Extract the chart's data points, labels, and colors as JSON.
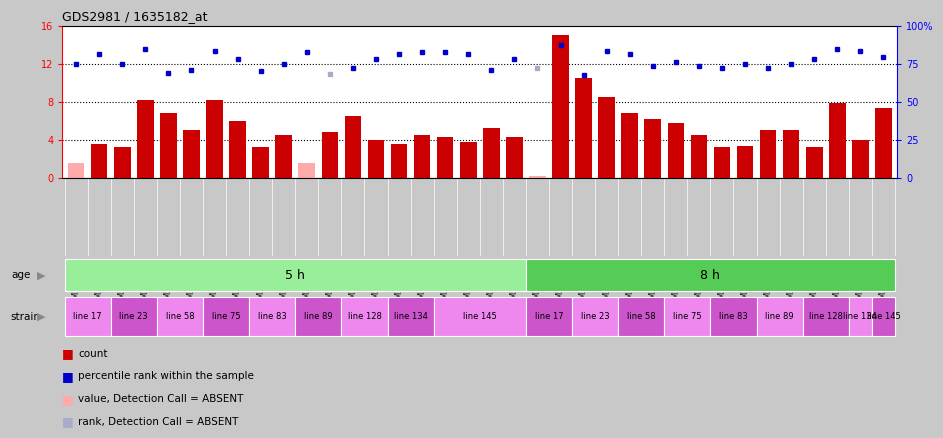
{
  "title": "GDS2981 / 1635182_at",
  "samples": [
    "GSM225283",
    "GSM225286",
    "GSM225288",
    "GSM225289",
    "GSM225291",
    "GSM225293",
    "GSM225296",
    "GSM225298",
    "GSM225299",
    "GSM225302",
    "GSM225304",
    "GSM225306",
    "GSM225307",
    "GSM225309",
    "GSM225317",
    "GSM225318",
    "GSM225319",
    "GSM225320",
    "GSM225322",
    "GSM225323",
    "GSM225324",
    "GSM225325",
    "GSM225326",
    "GSM225327",
    "GSM225328",
    "GSM225329",
    "GSM225330",
    "GSM225331",
    "GSM225332",
    "GSM225333",
    "GSM225334",
    "GSM225335",
    "GSM225336",
    "GSM225337",
    "GSM225338",
    "GSM225339"
  ],
  "bar_values": [
    1.5,
    3.5,
    3.2,
    8.2,
    6.8,
    5.0,
    8.2,
    6.0,
    3.2,
    4.5,
    1.5,
    4.8,
    6.5,
    4.0,
    3.5,
    4.5,
    4.3,
    3.8,
    5.2,
    4.3,
    0.2,
    15.0,
    10.5,
    8.5,
    6.8,
    6.2,
    5.8,
    4.5,
    3.2,
    3.3,
    5.0,
    5.0,
    3.2,
    7.9,
    4.0,
    7.3
  ],
  "bar_absent": [
    true,
    false,
    false,
    false,
    false,
    false,
    false,
    false,
    false,
    false,
    true,
    false,
    false,
    false,
    false,
    false,
    false,
    false,
    false,
    false,
    true,
    false,
    false,
    false,
    false,
    false,
    false,
    false,
    false,
    false,
    false,
    false,
    false,
    false,
    false,
    false
  ],
  "rank_values": [
    12.0,
    13.0,
    12.0,
    13.5,
    11.0,
    11.3,
    13.3,
    12.5,
    11.2,
    12.0,
    13.2,
    10.9,
    11.5,
    12.5,
    13.0,
    13.2,
    13.2,
    13.0,
    11.3,
    12.5,
    11.5,
    14.0,
    10.8,
    13.3,
    13.0,
    11.8,
    12.2,
    11.8,
    11.5,
    12.0,
    11.5,
    12.0,
    12.5,
    13.5,
    13.3,
    12.7
  ],
  "rank_absent": [
    false,
    false,
    false,
    false,
    false,
    false,
    false,
    false,
    false,
    false,
    false,
    true,
    false,
    false,
    false,
    false,
    false,
    false,
    false,
    false,
    true,
    false,
    false,
    false,
    false,
    false,
    false,
    false,
    false,
    false,
    false,
    false,
    false,
    false,
    false,
    false
  ],
  "ylim_left": [
    0,
    16
  ],
  "ylim_right": [
    0,
    100
  ],
  "yticks_left": [
    0,
    4,
    8,
    12,
    16
  ],
  "yticks_right": [
    0,
    25,
    50,
    75,
    100
  ],
  "hlines": [
    4,
    8,
    12
  ],
  "age_groups": [
    {
      "label": "5 h",
      "start": 0,
      "end": 20,
      "color": "#99ee99"
    },
    {
      "label": "8 h",
      "start": 20,
      "end": 36,
      "color": "#55cc55"
    }
  ],
  "strain_groups": [
    {
      "label": "line 17",
      "start": 0,
      "end": 2,
      "color": "#ee88ee"
    },
    {
      "label": "line 23",
      "start": 2,
      "end": 4,
      "color": "#cc55cc"
    },
    {
      "label": "line 58",
      "start": 4,
      "end": 6,
      "color": "#ee88ee"
    },
    {
      "label": "line 75",
      "start": 6,
      "end": 8,
      "color": "#cc55cc"
    },
    {
      "label": "line 83",
      "start": 8,
      "end": 10,
      "color": "#ee88ee"
    },
    {
      "label": "line 89",
      "start": 10,
      "end": 12,
      "color": "#cc55cc"
    },
    {
      "label": "line 128",
      "start": 12,
      "end": 14,
      "color": "#ee88ee"
    },
    {
      "label": "line 134",
      "start": 14,
      "end": 16,
      "color": "#cc55cc"
    },
    {
      "label": "line 145",
      "start": 16,
      "end": 20,
      "color": "#ee88ee"
    },
    {
      "label": "line 17",
      "start": 20,
      "end": 22,
      "color": "#cc55cc"
    },
    {
      "label": "line 23",
      "start": 22,
      "end": 24,
      "color": "#ee88ee"
    },
    {
      "label": "line 58",
      "start": 24,
      "end": 26,
      "color": "#cc55cc"
    },
    {
      "label": "line 75",
      "start": 26,
      "end": 28,
      "color": "#ee88ee"
    },
    {
      "label": "line 83",
      "start": 28,
      "end": 30,
      "color": "#cc55cc"
    },
    {
      "label": "line 89",
      "start": 30,
      "end": 32,
      "color": "#ee88ee"
    },
    {
      "label": "line 128",
      "start": 32,
      "end": 34,
      "color": "#cc55cc"
    },
    {
      "label": "line 134",
      "start": 34,
      "end": 35,
      "color": "#ee88ee"
    },
    {
      "label": "line 145",
      "start": 35,
      "end": 36,
      "color": "#cc55cc"
    }
  ],
  "bar_color_normal": "#cc0000",
  "bar_color_absent": "#ffaaaa",
  "rank_color_normal": "#0000cc",
  "rank_color_absent": "#aaaacc",
  "fig_bg": "#c8c8c8",
  "plot_bg": "#ffffff",
  "xlabel_bg": "#c8c8c8",
  "legend_items": [
    {
      "label": "count",
      "color": "#cc0000"
    },
    {
      "label": "percentile rank within the sample",
      "color": "#0000cc"
    },
    {
      "label": "value, Detection Call = ABSENT",
      "color": "#ffaaaa"
    },
    {
      "label": "rank, Detection Call = ABSENT",
      "color": "#aaaacc"
    }
  ]
}
